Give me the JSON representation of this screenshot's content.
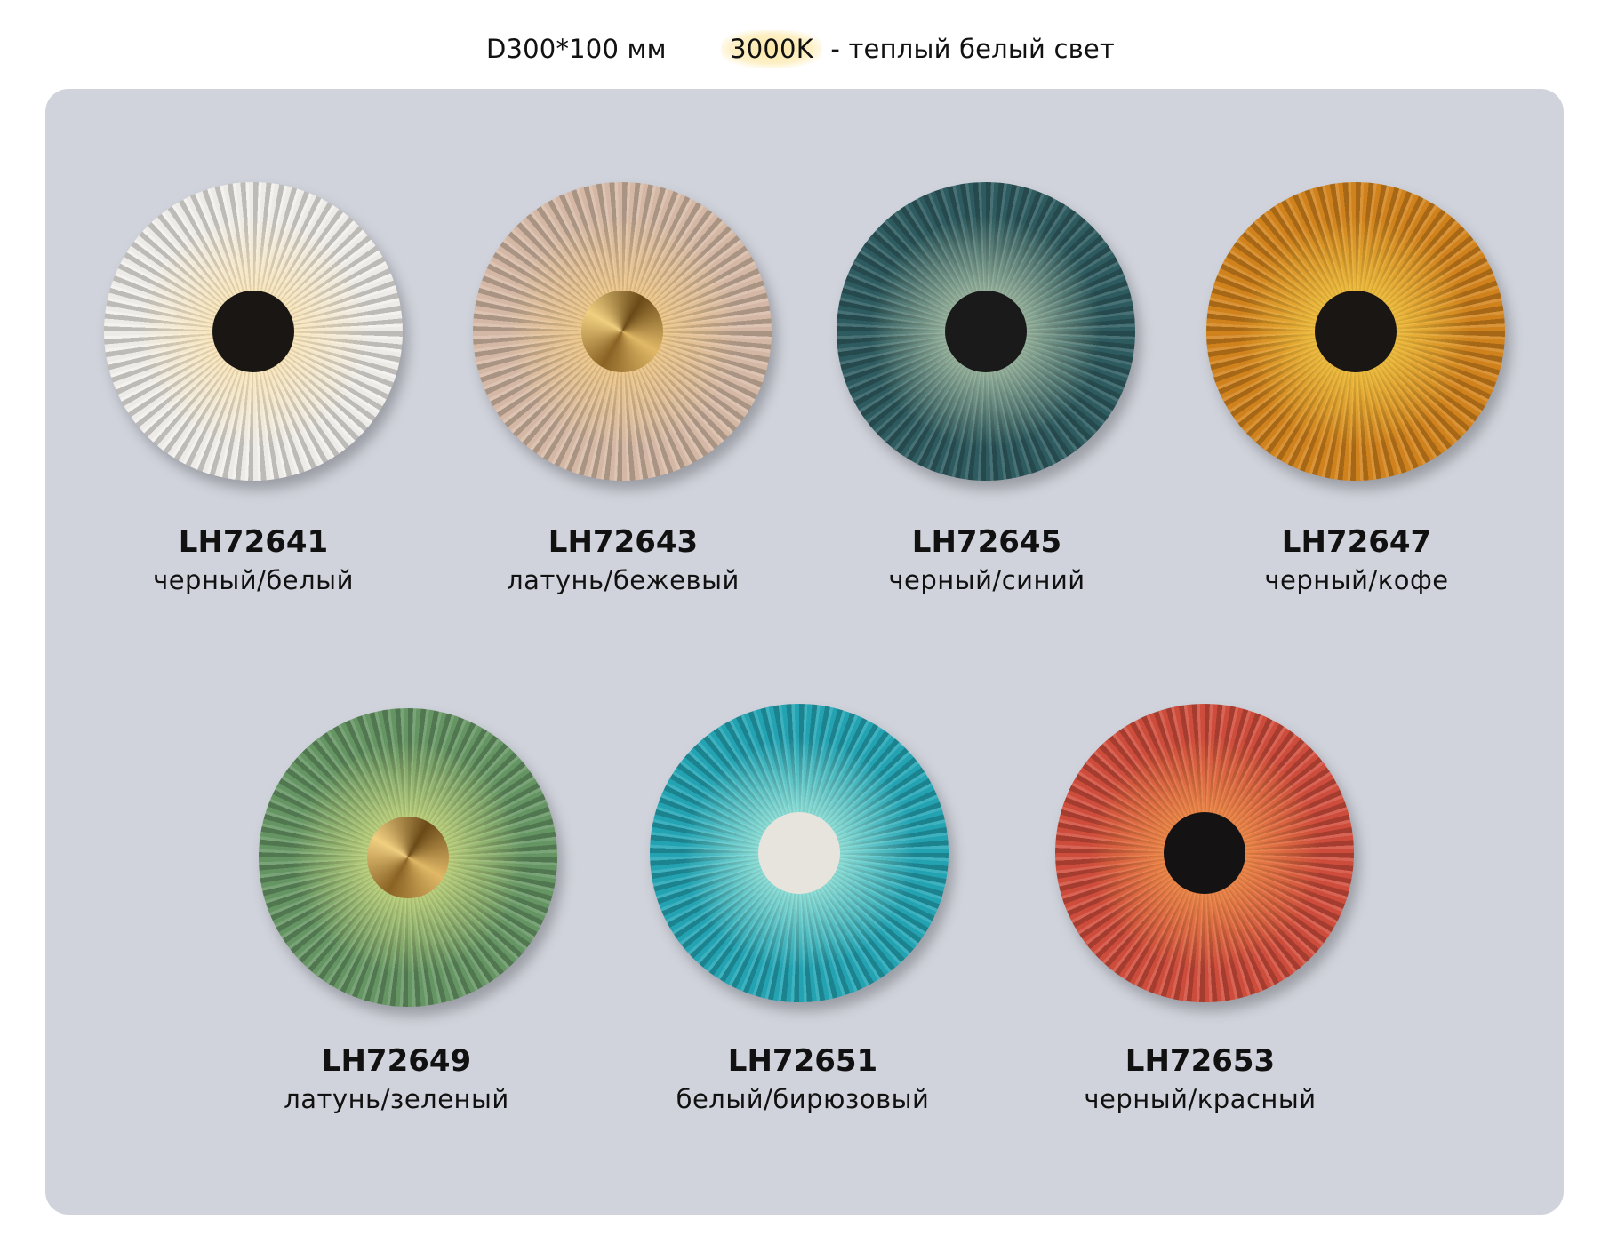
{
  "header": {
    "dimensions": "D300*100 мм",
    "temperature": "3000K",
    "light_desc": "- теплый белый свет",
    "highlight_color": "#fbe7a6"
  },
  "panel_color": "#d0d3db",
  "products": [
    {
      "code": "LH72641",
      "finish": "черный/белый",
      "shade_color": "#f2f0ec",
      "center_color": "#1a1614",
      "glow": "rgba(255,225,160,0.9)",
      "center_type": "black"
    },
    {
      "code": "LH72643",
      "finish": "латунь/бежевый",
      "shade_color": "#d8bca8",
      "center_color": "#b8903e",
      "glow": "rgba(255,210,120,0.85)",
      "center_type": "brass"
    },
    {
      "code": "LH72645",
      "finish": "черный/синий",
      "shade_color": "#2f5d62",
      "center_color": "#1a1a1a",
      "glow": "rgba(225,240,200,0.85)",
      "center_type": "black"
    },
    {
      "code": "LH72647",
      "finish": "черный/кофе",
      "shade_color": "#d4841c",
      "center_color": "#1a1614",
      "glow": "rgba(255,220,80,0.95)",
      "center_type": "black"
    },
    {
      "code": "LH72649",
      "finish": "латунь/зеленый",
      "shade_color": "#689866",
      "center_color": "#b8903e",
      "glow": "rgba(240,245,140,0.9)",
      "center_type": "brass"
    },
    {
      "code": "LH72651",
      "finish": "белый/бирюзовый",
      "shade_color": "#24a6b6",
      "center_color": "#e6e4dc",
      "glow": "rgba(200,255,235,0.95)",
      "center_type": "white"
    },
    {
      "code": "LH72653",
      "finish": "черный/красный",
      "shade_color": "#d24e3c",
      "center_color": "#141212",
      "glow": "rgba(255,170,80,0.9)",
      "center_type": "black"
    }
  ]
}
